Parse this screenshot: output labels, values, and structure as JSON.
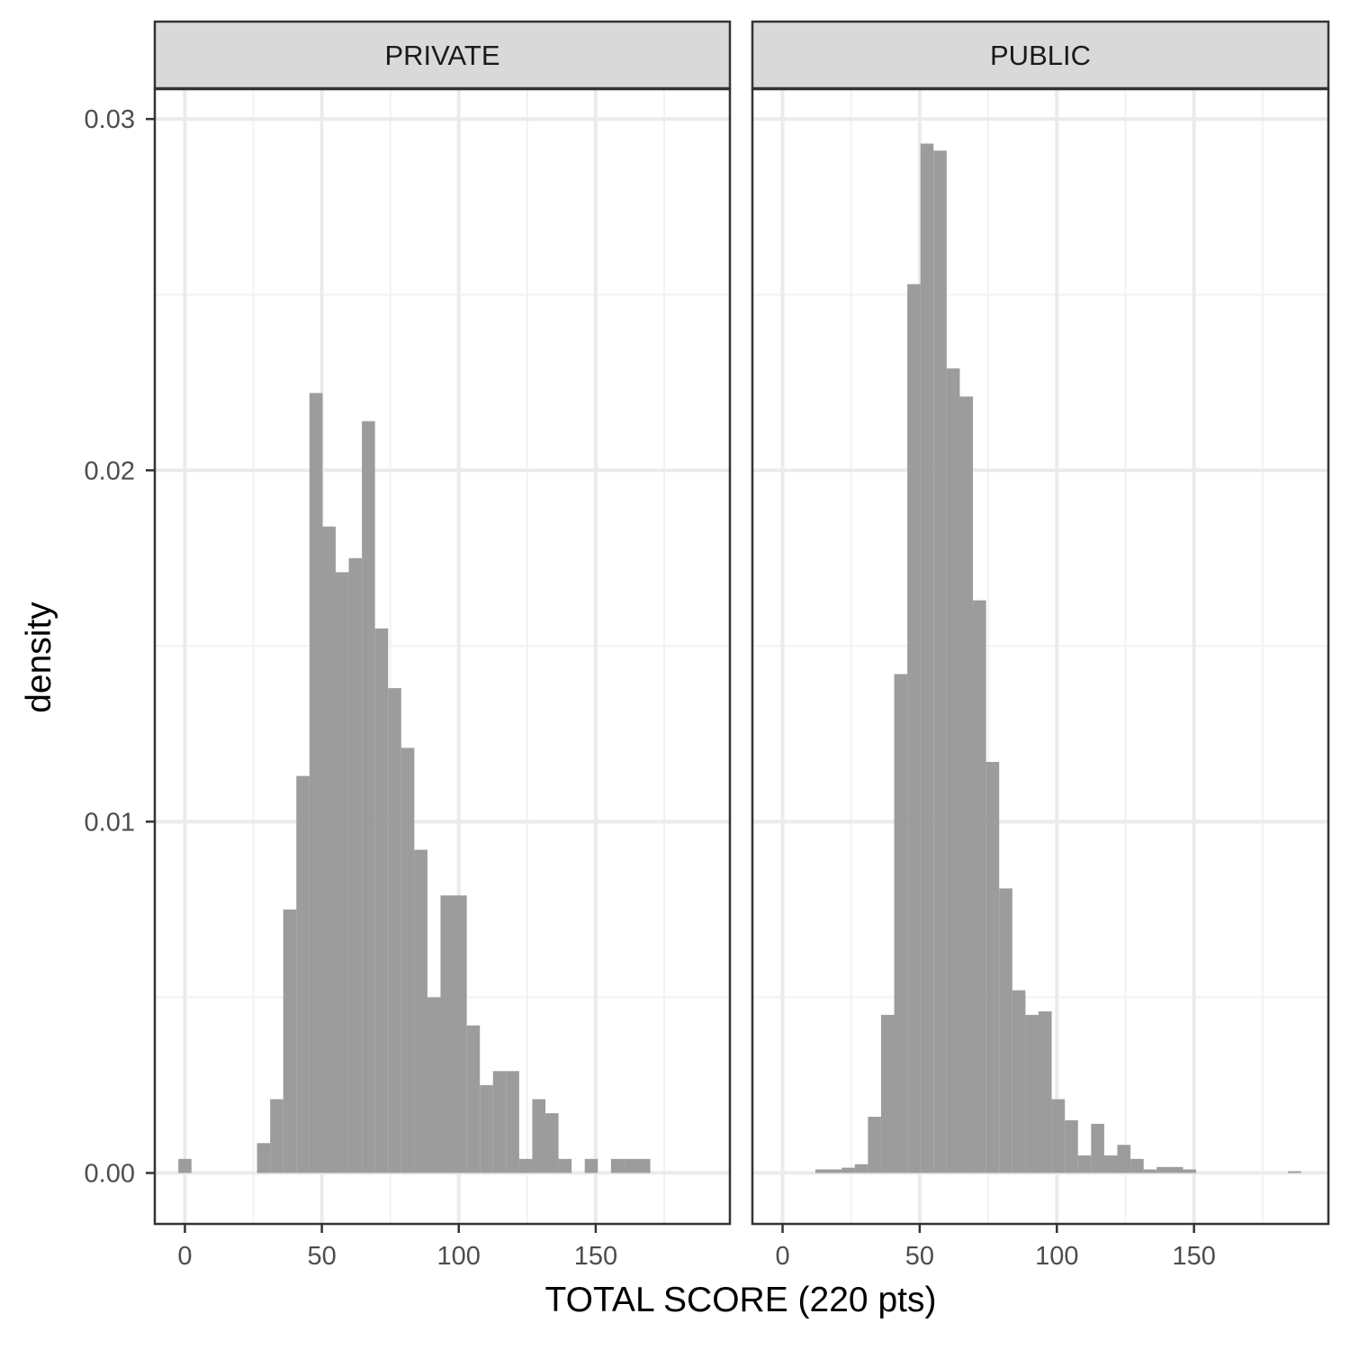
{
  "chart_data": {
    "type": "bar",
    "subtype": "faceted-histogram",
    "xlabel": "TOTAL SCORE (220 pts)",
    "ylabel": "density",
    "xlim": [
      -11,
      199
    ],
    "ylim": [
      -0.00145,
      0.03085
    ],
    "x_ticks": [
      0,
      50,
      100,
      150
    ],
    "y_ticks": [
      0.0,
      0.01,
      0.02,
      0.03
    ],
    "y_tick_labels": [
      "0.00",
      "0.01",
      "0.02",
      "0.03"
    ],
    "bin_width": 4.787,
    "grid": true,
    "colors": {
      "bar": "#999999",
      "strip_fill": "#d9d9d9",
      "panel_border": "#333333",
      "grid_major": "#ebebeb",
      "grid_minor": "#f2f2f2"
    },
    "facets": [
      {
        "name": "PRIVATE",
        "bins": [
          {
            "x0": -2.39,
            "x1": 2.39,
            "density": 0.0004
          },
          {
            "x0": 26.33,
            "x1": 31.12,
            "density": 0.00085
          },
          {
            "x0": 31.12,
            "x1": 35.9,
            "density": 0.0021
          },
          {
            "x0": 35.9,
            "x1": 40.69,
            "density": 0.0075
          },
          {
            "x0": 40.69,
            "x1": 45.48,
            "density": 0.0113
          },
          {
            "x0": 45.48,
            "x1": 50.26,
            "density": 0.0222
          },
          {
            "x0": 50.26,
            "x1": 55.05,
            "density": 0.0184
          },
          {
            "x0": 55.05,
            "x1": 59.84,
            "density": 0.0171
          },
          {
            "x0": 59.84,
            "x1": 64.62,
            "density": 0.0175
          },
          {
            "x0": 64.62,
            "x1": 69.41,
            "density": 0.0214
          },
          {
            "x0": 69.41,
            "x1": 74.2,
            "density": 0.0155
          },
          {
            "x0": 74.2,
            "x1": 78.98,
            "density": 0.0138
          },
          {
            "x0": 78.98,
            "x1": 83.77,
            "density": 0.0121
          },
          {
            "x0": 83.77,
            "x1": 88.56,
            "density": 0.0092
          },
          {
            "x0": 88.56,
            "x1": 93.34,
            "density": 0.005
          },
          {
            "x0": 93.34,
            "x1": 98.13,
            "density": 0.0079
          },
          {
            "x0": 98.13,
            "x1": 102.92,
            "density": 0.0079
          },
          {
            "x0": 102.92,
            "x1": 107.7,
            "density": 0.0042
          },
          {
            "x0": 107.7,
            "x1": 112.49,
            "density": 0.0025
          },
          {
            "x0": 112.49,
            "x1": 117.28,
            "density": 0.0029
          },
          {
            "x0": 117.28,
            "x1": 122.06,
            "density": 0.0029
          },
          {
            "x0": 122.06,
            "x1": 126.85,
            "density": 0.0004
          },
          {
            "x0": 126.85,
            "x1": 131.64,
            "density": 0.0021
          },
          {
            "x0": 131.64,
            "x1": 136.42,
            "density": 0.0017
          },
          {
            "x0": 136.42,
            "x1": 141.21,
            "density": 0.0004
          },
          {
            "x0": 146.0,
            "x1": 150.78,
            "density": 0.0004
          },
          {
            "x0": 155.57,
            "x1": 160.36,
            "density": 0.0004
          },
          {
            "x0": 160.36,
            "x1": 165.14,
            "density": 0.0004
          },
          {
            "x0": 165.14,
            "x1": 169.93,
            "density": 0.0004
          }
        ]
      },
      {
        "name": "PUBLIC",
        "bins": [
          {
            "x0": 11.97,
            "x1": 16.75,
            "density": 0.0001
          },
          {
            "x0": 16.75,
            "x1": 21.54,
            "density": 0.0001
          },
          {
            "x0": 21.54,
            "x1": 26.33,
            "density": 0.00015
          },
          {
            "x0": 26.33,
            "x1": 31.12,
            "density": 0.00025
          },
          {
            "x0": 31.12,
            "x1": 35.9,
            "density": 0.0016
          },
          {
            "x0": 35.9,
            "x1": 40.69,
            "density": 0.0045
          },
          {
            "x0": 40.69,
            "x1": 45.48,
            "density": 0.0142
          },
          {
            "x0": 45.48,
            "x1": 50.26,
            "density": 0.0253
          },
          {
            "x0": 50.26,
            "x1": 55.05,
            "density": 0.0293
          },
          {
            "x0": 55.05,
            "x1": 59.84,
            "density": 0.0291
          },
          {
            "x0": 59.84,
            "x1": 64.62,
            "density": 0.0229
          },
          {
            "x0": 64.62,
            "x1": 69.41,
            "density": 0.0221
          },
          {
            "x0": 69.41,
            "x1": 74.2,
            "density": 0.0163
          },
          {
            "x0": 74.2,
            "x1": 78.98,
            "density": 0.0117
          },
          {
            "x0": 78.98,
            "x1": 83.77,
            "density": 0.0081
          },
          {
            "x0": 83.77,
            "x1": 88.56,
            "density": 0.0052
          },
          {
            "x0": 88.56,
            "x1": 93.34,
            "density": 0.0045
          },
          {
            "x0": 93.34,
            "x1": 98.13,
            "density": 0.0046
          },
          {
            "x0": 98.13,
            "x1": 102.92,
            "density": 0.0021
          },
          {
            "x0": 102.92,
            "x1": 107.7,
            "density": 0.0015
          },
          {
            "x0": 107.7,
            "x1": 112.49,
            "density": 0.0005
          },
          {
            "x0": 112.49,
            "x1": 117.28,
            "density": 0.0014
          },
          {
            "x0": 117.28,
            "x1": 122.06,
            "density": 0.0005
          },
          {
            "x0": 122.06,
            "x1": 126.85,
            "density": 0.0008
          },
          {
            "x0": 126.85,
            "x1": 131.64,
            "density": 0.0004
          },
          {
            "x0": 131.64,
            "x1": 136.42,
            "density": 0.0001
          },
          {
            "x0": 136.42,
            "x1": 141.21,
            "density": 0.00017
          },
          {
            "x0": 141.21,
            "x1": 146.0,
            "density": 0.00017
          },
          {
            "x0": 146.0,
            "x1": 150.78,
            "density": 0.0001
          },
          {
            "x0": 184.29,
            "x1": 189.07,
            "density": 5e-05
          }
        ]
      }
    ]
  }
}
